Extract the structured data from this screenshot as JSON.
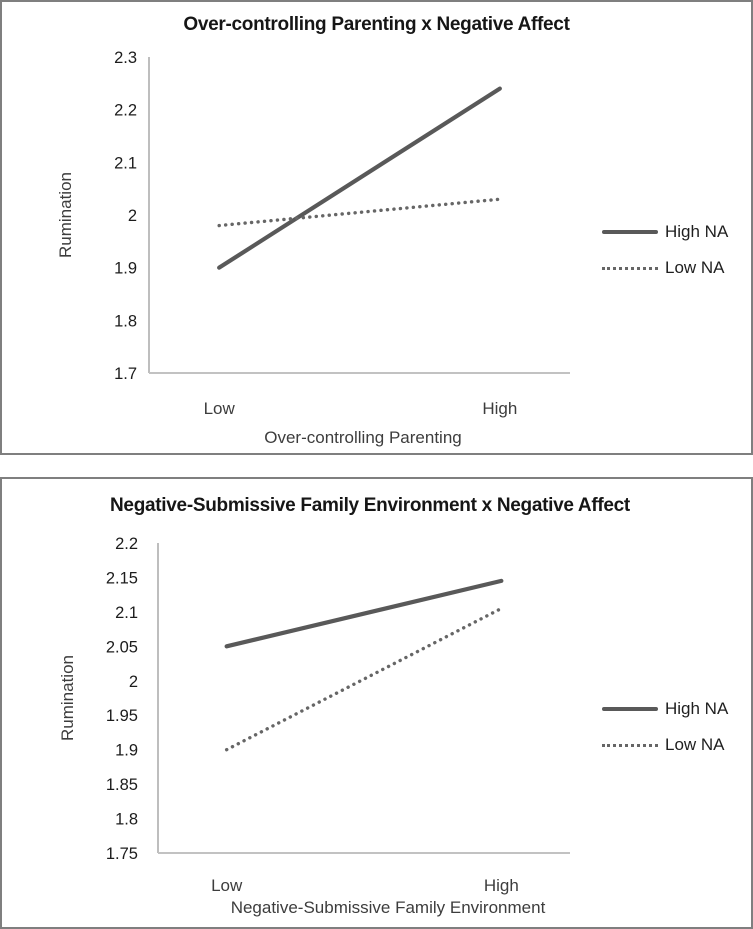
{
  "figure": {
    "background": "#ffffff",
    "panel_border_color": "#7f7f7f"
  },
  "colors": {
    "solid_series": "#595959",
    "dotted_series": "#666666",
    "axis_line": "#a9a9a9",
    "tick_text": "#1c1c1c",
    "title_text": "#161616",
    "axis_title_text": "#3d3d3d"
  },
  "chart_data": [
    {
      "type": "line",
      "title": "Over-controlling Parenting x Negative Affect",
      "ylabel": "Rumination",
      "xlabel": "Over-controlling Parenting",
      "categories": [
        "Low",
        "High"
      ],
      "ytick_labels": [
        "2.3",
        "2.2",
        "2.1",
        "2",
        "1.9",
        "1.8",
        "1.7"
      ],
      "ylim": [
        1.7,
        2.3
      ],
      "grid": false,
      "legend_position": "right",
      "series": [
        {
          "name": "High NA",
          "style": "solid",
          "color": "#595959",
          "values": [
            1.9,
            2.24
          ]
        },
        {
          "name": "Low NA",
          "style": "dotted",
          "color": "#666666",
          "values": [
            1.98,
            2.03
          ]
        }
      ]
    },
    {
      "type": "line",
      "title": "Negative-Submissive Family Environment x Negative Affect",
      "ylabel": "Rumination",
      "xlabel": "Negative-Submissive Family Environment",
      "categories": [
        "Low",
        "High"
      ],
      "ytick_labels": [
        "2.2",
        "2.15",
        "2.1",
        "2.05",
        "2",
        "1.95",
        "1.9",
        "1.85",
        "1.8",
        "1.75"
      ],
      "ylim": [
        1.75,
        2.2
      ],
      "grid": false,
      "legend_position": "right",
      "series": [
        {
          "name": "High NA",
          "style": "solid",
          "color": "#595959",
          "values": [
            2.05,
            2.145
          ]
        },
        {
          "name": "Low NA",
          "style": "dotted",
          "color": "#666666",
          "values": [
            1.9,
            2.105
          ]
        }
      ]
    }
  ]
}
